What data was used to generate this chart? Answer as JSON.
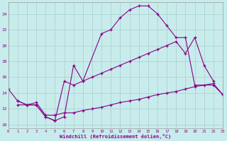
{
  "bg_color": "#c8ecec",
  "line_color": "#880088",
  "grid_color": "#aacccc",
  "xlabel": "Windchill (Refroidissement éolien,°C)",
  "xlim": [
    0,
    23
  ],
  "ylim": [
    9.5,
    25.5
  ],
  "yticks": [
    10,
    12,
    14,
    16,
    18,
    20,
    22,
    24
  ],
  "xticks": [
    0,
    1,
    2,
    3,
    4,
    5,
    6,
    7,
    8,
    9,
    10,
    11,
    12,
    13,
    14,
    15,
    16,
    17,
    18,
    19,
    20,
    21,
    22,
    23
  ],
  "series": [
    {
      "x": [
        0,
        1,
        2,
        3,
        4,
        5,
        6,
        7,
        8,
        10,
        11,
        12,
        13,
        14,
        15,
        16,
        17,
        18,
        19,
        20,
        22,
        23
      ],
      "y": [
        14.5,
        13.0,
        12.5,
        12.5,
        11.0,
        10.5,
        11.0,
        17.5,
        15.5,
        21.5,
        22.0,
        23.5,
        24.5,
        25.0,
        25.0,
        24.0,
        22.5,
        21.0,
        21.0,
        15.0,
        15.0,
        13.8
      ]
    },
    {
      "x": [
        1,
        2,
        3,
        4,
        5,
        6,
        7,
        8,
        9,
        10,
        11,
        12,
        13,
        14,
        15,
        16,
        17,
        18,
        19,
        20,
        21,
        22
      ],
      "y": [
        13.0,
        12.5,
        12.5,
        11.0,
        10.5,
        15.5,
        15.0,
        15.5,
        16.0,
        16.5,
        17.0,
        17.5,
        18.0,
        18.5,
        19.0,
        19.5,
        20.0,
        20.5,
        19.0,
        21.0,
        17.5,
        15.5
      ]
    },
    {
      "x": [
        1,
        2,
        3,
        4,
        5,
        6,
        7,
        8,
        9,
        10,
        11,
        12,
        13,
        14,
        15,
        16,
        17,
        18,
        19,
        20,
        21,
        22,
        23
      ],
      "y": [
        12.5,
        12.5,
        12.8,
        11.2,
        11.2,
        11.5,
        11.5,
        11.8,
        12.0,
        12.2,
        12.5,
        12.8,
        13.0,
        13.2,
        13.5,
        13.8,
        14.0,
        14.2,
        14.5,
        14.8,
        15.0,
        15.2,
        13.8
      ]
    }
  ]
}
